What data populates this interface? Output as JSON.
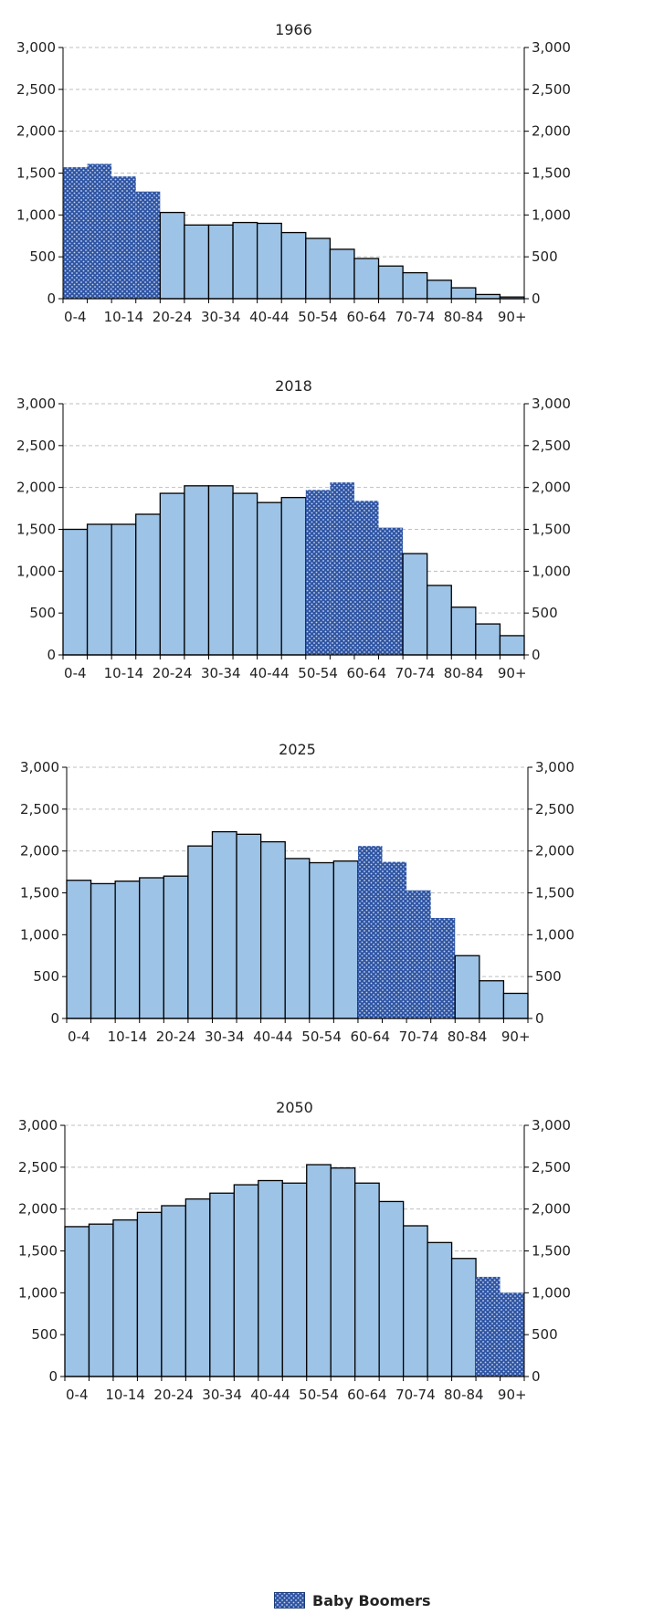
{
  "colors": {
    "bar_fill": "#9dc3e6",
    "boomer_fill": "#2f55a4",
    "boomer_dot": "#c9d8f0",
    "bar_stroke": "#000000",
    "gridline": "#bfbfbf"
  },
  "legend": {
    "label": "Baby Boomers"
  },
  "chart_data": [
    {
      "type": "bar",
      "title": "1966",
      "categories": [
        "0-4",
        "5-9",
        "10-14",
        "15-19",
        "20-24",
        "25-29",
        "30-34",
        "35-39",
        "40-44",
        "45-49",
        "50-54",
        "55-59",
        "60-64",
        "65-69",
        "70-74",
        "75-79",
        "80-84",
        "85-89",
        "90+"
      ],
      "tick_labels": [
        "0-4",
        "10-14",
        "20-24",
        "30-34",
        "40-44",
        "50-54",
        "60-64",
        "70-74",
        "80-84",
        "90+"
      ],
      "values": [
        1570,
        1610,
        1460,
        1280,
        1030,
        880,
        880,
        910,
        900,
        790,
        720,
        590,
        480,
        390,
        310,
        220,
        130,
        50,
        20
      ],
      "boomer": [
        true,
        true,
        true,
        true,
        false,
        false,
        false,
        false,
        false,
        false,
        false,
        false,
        false,
        false,
        false,
        false,
        false,
        false,
        false
      ],
      "ylim": [
        0,
        3000
      ],
      "yticks": [
        "0",
        "500",
        "1,000",
        "1,500",
        "2,000",
        "2,500",
        "3,000"
      ],
      "grid": true
    },
    {
      "type": "bar",
      "title": "2018",
      "categories": [
        "0-4",
        "5-9",
        "10-14",
        "15-19",
        "20-24",
        "25-29",
        "30-34",
        "35-39",
        "40-44",
        "45-49",
        "50-54",
        "55-59",
        "60-64",
        "65-69",
        "70-74",
        "75-79",
        "80-84",
        "85-89",
        "90+"
      ],
      "tick_labels": [
        "0-4",
        "10-14",
        "20-24",
        "30-34",
        "40-44",
        "50-54",
        "60-64",
        "70-74",
        "80-84",
        "90+"
      ],
      "values": [
        1500,
        1560,
        1560,
        1680,
        1930,
        2020,
        2020,
        1930,
        1820,
        1880,
        1970,
        2060,
        1840,
        1520,
        1210,
        830,
        570,
        370,
        230
      ],
      "boomer": [
        false,
        false,
        false,
        false,
        false,
        false,
        false,
        false,
        false,
        false,
        true,
        true,
        true,
        true,
        false,
        false,
        false,
        false,
        false
      ],
      "ylim": [
        0,
        3000
      ],
      "yticks": [
        "0",
        "500",
        "1,000",
        "1,500",
        "2,000",
        "2,500",
        "3,000"
      ],
      "grid": true
    },
    {
      "type": "bar",
      "title": "2025",
      "categories": [
        "0-4",
        "5-9",
        "10-14",
        "15-19",
        "20-24",
        "25-29",
        "30-34",
        "35-39",
        "40-44",
        "45-49",
        "50-54",
        "55-59",
        "60-64",
        "65-69",
        "70-74",
        "75-79",
        "80-84",
        "85-89",
        "90+"
      ],
      "tick_labels": [
        "0-4",
        "10-14",
        "20-24",
        "30-34",
        "40-44",
        "50-54",
        "60-64",
        "70-74",
        "80-84",
        "90+"
      ],
      "values": [
        1650,
        1610,
        1640,
        1680,
        1700,
        2060,
        2230,
        2200,
        2110,
        1910,
        1860,
        1880,
        2060,
        1870,
        1530,
        1200,
        750,
        450,
        300
      ],
      "boomer": [
        false,
        false,
        false,
        false,
        false,
        false,
        false,
        false,
        false,
        false,
        false,
        false,
        true,
        true,
        true,
        true,
        false,
        false,
        false
      ],
      "ylim": [
        0,
        3000
      ],
      "yticks": [
        "0",
        "500",
        "1,000",
        "1,500",
        "2,000",
        "2,500",
        "3,000"
      ],
      "grid": true
    },
    {
      "type": "bar",
      "title": "2050",
      "categories": [
        "0-4",
        "5-9",
        "10-14",
        "15-19",
        "20-24",
        "25-29",
        "30-34",
        "35-39",
        "40-44",
        "45-49",
        "50-54",
        "55-59",
        "60-64",
        "65-69",
        "70-74",
        "75-79",
        "80-84",
        "85-89",
        "90+"
      ],
      "tick_labels": [
        "0-4",
        "10-14",
        "20-24",
        "30-34",
        "40-44",
        "50-54",
        "60-64",
        "70-74",
        "80-84",
        "90+"
      ],
      "values": [
        1790,
        1820,
        1870,
        1960,
        2040,
        2120,
        2190,
        2290,
        2340,
        2310,
        2530,
        2490,
        2310,
        2090,
        1800,
        1600,
        1410,
        1190,
        1000
      ],
      "boomer": [
        false,
        false,
        false,
        false,
        false,
        false,
        false,
        false,
        false,
        false,
        false,
        false,
        false,
        false,
        false,
        false,
        false,
        true,
        true
      ],
      "ylim": [
        0,
        3000
      ],
      "yticks": [
        "0",
        "500",
        "1,000",
        "1,500",
        "2,000",
        "2,500",
        "3,000"
      ],
      "grid": true
    }
  ]
}
